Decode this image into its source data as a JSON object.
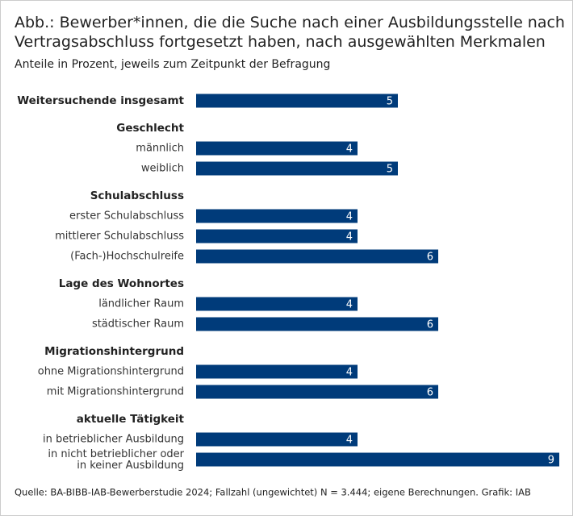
{
  "chart_data": {
    "type": "bar",
    "title": "Abb.: Bewerber*innen, die die Suche nach einer Ausbildungsstelle nach\nVertragsabschluss fortgesetzt haben, nach ausgewählten Merkmalen",
    "subtitle": "Anteile in Prozent, jeweils zum Zeitpunkt der Befragung",
    "source": "Quelle: BA-BIBB-IAB-Bewerberstudie 2024; Fallzahl (ungewichtet) N = 3.444; eigene Berechnungen. Grafik: IAB",
    "color": "#003b7a",
    "groups": [
      {
        "name": "Weitersuchende insgesamt",
        "value": 5,
        "categories": [],
        "values": []
      },
      {
        "name": "Geschlecht",
        "categories": [
          "männlich",
          "weiblich"
        ],
        "values": [
          4,
          5
        ]
      },
      {
        "name": "Schulabschluss",
        "categories": [
          "erster Schulabschluss",
          "mittlerer Schulabschluss",
          "(Fach-)Hochschulreife"
        ],
        "values": [
          4,
          4,
          6
        ]
      },
      {
        "name": "Lage des Wohnortes",
        "categories": [
          "ländlicher Raum",
          "städtischer Raum"
        ],
        "values": [
          4,
          6
        ]
      },
      {
        "name": "Migrationshintergrund",
        "categories": [
          "ohne Migrationshintergrund",
          "mit Migrationshintergrund"
        ],
        "values": [
          4,
          6
        ]
      },
      {
        "name": "aktuelle Tätigkeit",
        "categories": [
          "in betrieblicher Ausbildung",
          "in nicht betrieblicher oder\nin keiner Ausbildung"
        ],
        "values": [
          4,
          9
        ]
      }
    ]
  }
}
